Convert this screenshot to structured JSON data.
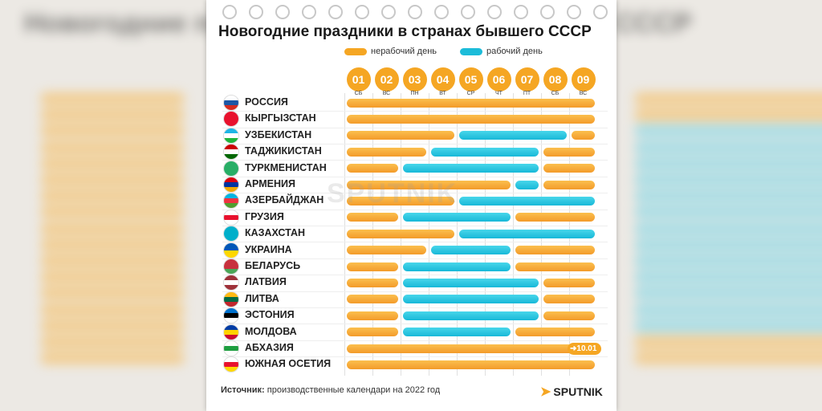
{
  "title": "Новогодние праздники в странах бывшего СССР",
  "legend": {
    "off_label": "нерабочий день",
    "work_label": "рабочий день"
  },
  "colors": {
    "off": "#f5a623",
    "work": "#1cbcd9"
  },
  "days": [
    "01",
    "02",
    "03",
    "04",
    "05",
    "06",
    "07",
    "08",
    "09"
  ],
  "weekdays": [
    "СБ",
    "ВС",
    "ПН",
    "ВТ",
    "СР",
    "ЧТ",
    "ПТ",
    "СБ",
    "ВС"
  ],
  "source": {
    "label": "Источник:",
    "text": "производственные календари на 2022 год"
  },
  "logo_text": "SPUTNIK",
  "watermark": "SPUTNIK",
  "chart_data": {
    "type": "table",
    "categories": [
      "01",
      "02",
      "03",
      "04",
      "05",
      "06",
      "07",
      "08",
      "09"
    ],
    "rows": [
      {
        "country": "РОССИЯ",
        "flag": [
          "#ffffff",
          "#1c57a5",
          "#d52b1e"
        ],
        "days": [
          "off",
          "off",
          "off",
          "off",
          "off",
          "off",
          "off",
          "off",
          "off"
        ]
      },
      {
        "country": "КЫРГЫЗСТАН",
        "flag": [
          "#e8112d"
        ],
        "days": [
          "off",
          "off",
          "off",
          "off",
          "off",
          "off",
          "off",
          "off",
          "off"
        ]
      },
      {
        "country": "УЗБЕКИСТАН",
        "flag": [
          "#1eb5e5",
          "#ffffff",
          "#1eb53a"
        ],
        "days": [
          "off",
          "off",
          "off",
          "off",
          "work",
          "work",
          "work",
          "work",
          "off"
        ]
      },
      {
        "country": "ТАДЖИКИСТАН",
        "flag": [
          "#cc0000",
          "#ffffff",
          "#006600"
        ],
        "days": [
          "off",
          "off",
          "off",
          "work",
          "work",
          "work",
          "work",
          "off",
          "off"
        ]
      },
      {
        "country": "ТУРКМЕНИСТАН",
        "flag": [
          "#28ae66"
        ],
        "days": [
          "off",
          "off",
          "work",
          "work",
          "work",
          "work",
          "work",
          "off",
          "off"
        ]
      },
      {
        "country": "АРМЕНИЯ",
        "flag": [
          "#d90012",
          "#0033a0",
          "#f2a800"
        ],
        "days": [
          "off",
          "off",
          "off",
          "off",
          "off",
          "off",
          "work",
          "off",
          "off"
        ]
      },
      {
        "country": "АЗЕРБАЙДЖАН",
        "flag": [
          "#00b5e2",
          "#ef3340",
          "#509e2f"
        ],
        "days": [
          "off",
          "off",
          "off",
          "off",
          "work",
          "work",
          "work",
          "work",
          "work"
        ]
      },
      {
        "country": "ГРУЗИЯ",
        "flag": [
          "#ffffff",
          "#e8112d",
          "#ffffff"
        ],
        "days": [
          "off",
          "off",
          "work",
          "work",
          "work",
          "work",
          "off",
          "off",
          "off"
        ]
      },
      {
        "country": "КАЗАХСТАН",
        "flag": [
          "#00afca"
        ],
        "days": [
          "off",
          "off",
          "off",
          "off",
          "work",
          "work",
          "work",
          "work",
          "work"
        ]
      },
      {
        "country": "УКРАИНА",
        "flag": [
          "#0057b7",
          "#ffd700"
        ],
        "days": [
          "off",
          "off",
          "off",
          "work",
          "work",
          "work",
          "off",
          "off",
          "off"
        ]
      },
      {
        "country": "БЕЛАРУСЬ",
        "flag": [
          "#c8313e",
          "#c8313e",
          "#4aa657"
        ],
        "days": [
          "off",
          "off",
          "work",
          "work",
          "work",
          "work",
          "off",
          "off",
          "off"
        ]
      },
      {
        "country": "ЛАТВИЯ",
        "flag": [
          "#9e3039",
          "#ffffff",
          "#9e3039"
        ],
        "days": [
          "off",
          "off",
          "work",
          "work",
          "work",
          "work",
          "work",
          "off",
          "off"
        ]
      },
      {
        "country": "ЛИТВА",
        "flag": [
          "#fdb913",
          "#006a44",
          "#c1272d"
        ],
        "days": [
          "off",
          "off",
          "work",
          "work",
          "work",
          "work",
          "work",
          "off",
          "off"
        ]
      },
      {
        "country": "ЭСТОНИЯ",
        "flag": [
          "#0072ce",
          "#000000",
          "#ffffff"
        ],
        "days": [
          "off",
          "off",
          "work",
          "work",
          "work",
          "work",
          "work",
          "off",
          "off"
        ]
      },
      {
        "country": "МОЛДОВА",
        "flag": [
          "#003da5",
          "#ffd200",
          "#cc092f"
        ],
        "days": [
          "off",
          "off",
          "work",
          "work",
          "work",
          "work",
          "off",
          "off",
          "off"
        ]
      },
      {
        "country": "АБХАЗИЯ",
        "flag": [
          "#ffffff",
          "#1e9e3f",
          "#ffffff"
        ],
        "days": [
          "off",
          "off",
          "off",
          "off",
          "off",
          "off",
          "off",
          "off",
          "off"
        ],
        "note": "10.01"
      },
      {
        "country": "ЮЖНАЯ ОСЕТИЯ",
        "flag": [
          "#ffffff",
          "#e8112d",
          "#ffd700"
        ],
        "days": [
          "off",
          "off",
          "off",
          "off",
          "off",
          "off",
          "off",
          "off",
          "off"
        ]
      }
    ]
  }
}
